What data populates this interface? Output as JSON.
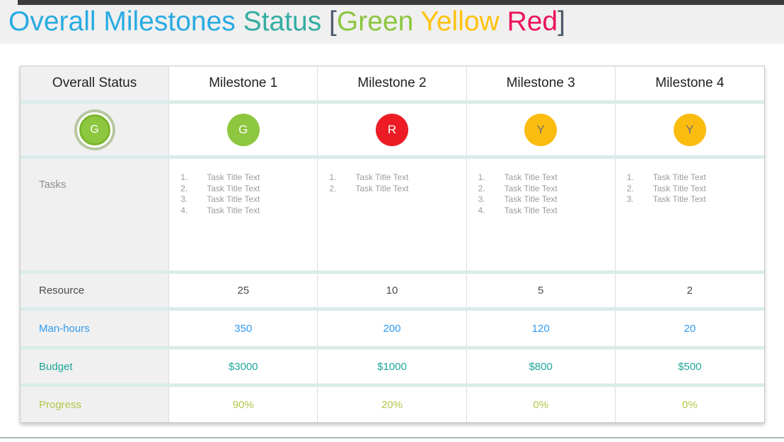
{
  "theme": {
    "top_bar_color": "#3b3b3b",
    "bottom_line_color": "#a9b5bb",
    "separator_color": "#d9ecea",
    "label_column_bg": "#f0f0f0"
  },
  "title": {
    "part1": "Overall Milestones ",
    "part1_color": "#29abe2",
    "part2": "Status ",
    "part2_color": "#35ada2",
    "bracket_open": "[",
    "bracket_close": "]",
    "bracket_color": "#4d5d6c",
    "words": [
      {
        "label": "Green ",
        "color": "#8cc63f"
      },
      {
        "label": "Yellow ",
        "color": "#ffc20e"
      },
      {
        "label": "Red",
        "color": "#ec135b"
      }
    ]
  },
  "table": {
    "header": {
      "label_column": "Overall Status",
      "milestones": [
        "Milestone 1",
        "Milestone 2",
        "Milestone 3",
        "Milestone 4"
      ]
    },
    "status": {
      "overall": {
        "letter": "G",
        "color": "#8dc63f",
        "text_color": "#ffffff"
      },
      "milestones": [
        {
          "letter": "G",
          "color": "#8dc63f",
          "text_color": "#ffffff"
        },
        {
          "letter": "R",
          "color": "#ed1c24",
          "text_color": "#ffffff"
        },
        {
          "letter": "Y",
          "color": "#fbbc10",
          "text_color": "#6f7070"
        },
        {
          "letter": "Y",
          "color": "#fbbc10",
          "text_color": "#6f7070"
        }
      ]
    },
    "tasks": {
      "label": "Tasks",
      "lists": [
        [
          "Task Title Text",
          "Task Title Text",
          "Task Title Text",
          "Task Title Text"
        ],
        [
          "Task Title Text",
          "Task Title Text"
        ],
        [
          "Task Title Text",
          "Task Title Text",
          "Task Title Text",
          "Task Title Text"
        ],
        [
          "Task Title Text",
          "Task Title Text",
          "Task Title Text"
        ]
      ]
    },
    "metrics": [
      {
        "label": "Resource",
        "color": "#4b4b4b",
        "values": [
          "25",
          "10",
          "5",
          "2"
        ]
      },
      {
        "label": "Man-hours",
        "color": "#2e9bf2",
        "values": [
          "350",
          "200",
          "120",
          "20"
        ]
      },
      {
        "label": "Budget",
        "color": "#1fa79a",
        "values": [
          "$3000",
          "$1000",
          "$800",
          "$500"
        ]
      },
      {
        "label": "Progress",
        "color": "#afc94b",
        "values": [
          "90%",
          "20%",
          "0%",
          "0%"
        ]
      }
    ]
  }
}
